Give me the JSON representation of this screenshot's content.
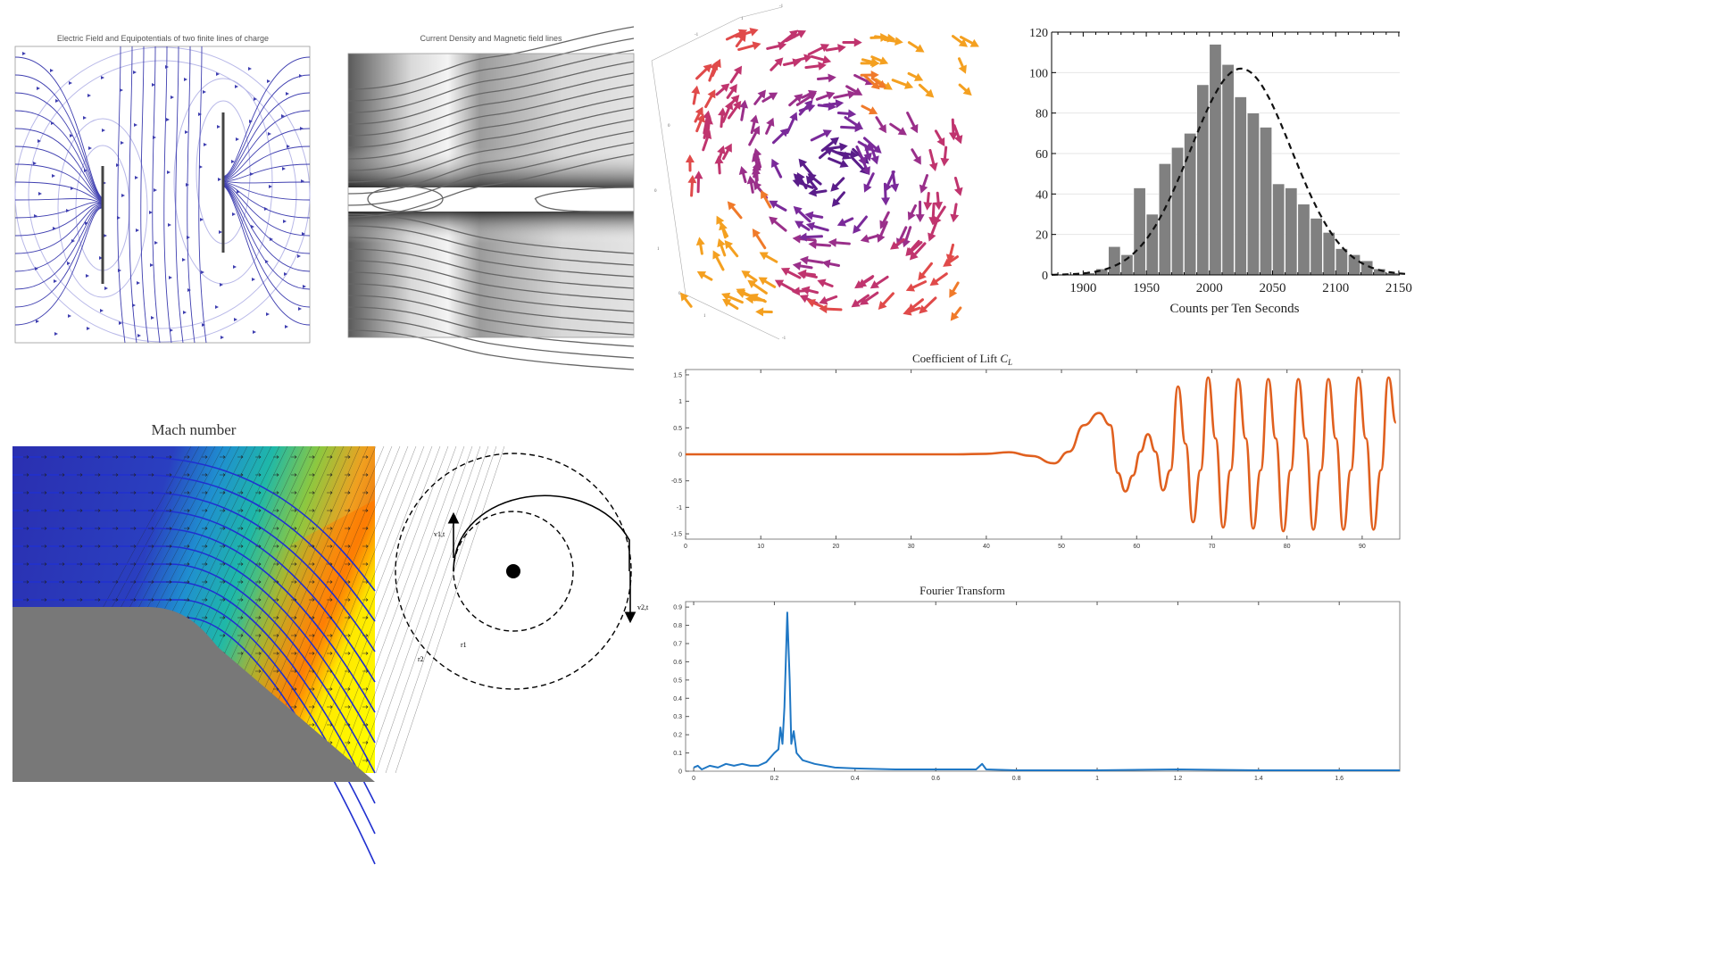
{
  "panels": {
    "efield": {
      "title": "Electric Field and Equipotentials of two finite lines of charge"
    },
    "current": {
      "title": "Current Density and Magnetic field lines"
    },
    "mach": {
      "title": "Mach number"
    },
    "orbit": {
      "labels": {
        "v1": "v1,t",
        "v2": "v2,t",
        "r1": "r1",
        "r2": "r2"
      }
    },
    "vector3d": {
      "axis_ticks": [
        "1",
        "-1",
        "0",
        "1",
        "0",
        "-1",
        "-1",
        "0",
        "1"
      ]
    }
  },
  "colors": {
    "field_line": "#3f3fb0",
    "equipotential": "#b8b8e8",
    "histogram_bar": "#808080",
    "lift_line": "#e0601f",
    "fourier_line": "#1f77c4"
  },
  "chart_data": [
    {
      "type": "bar",
      "title": "",
      "xlabel": "Counts per Ten Seconds",
      "ylabel": "",
      "xlim": [
        1875,
        2155
      ],
      "ylim": [
        0,
        120
      ],
      "xticks": [
        1900,
        1950,
        2000,
        2050,
        2100,
        2150
      ],
      "yticks": [
        0,
        20,
        40,
        60,
        80,
        100,
        120
      ],
      "bin_width": 10,
      "bin_starts": [
        1880,
        1890,
        1900,
        1910,
        1920,
        1930,
        1940,
        1950,
        1960,
        1970,
        1980,
        1990,
        2000,
        2010,
        2020,
        2030,
        2040,
        2050,
        2060,
        2070,
        2080,
        2090,
        2100,
        2110,
        2120,
        2130,
        2140,
        2150
      ],
      "values": [
        0,
        0,
        1,
        3,
        14,
        10,
        43,
        30,
        55,
        63,
        70,
        94,
        114,
        104,
        88,
        80,
        73,
        45,
        43,
        35,
        28,
        21,
        13,
        10,
        7,
        3,
        1,
        0
      ],
      "fit_curve": {
        "style": "dashed",
        "mean": 2025,
        "sd": 40,
        "peak": 102
      }
    },
    {
      "type": "line",
      "title": "Coefficient of Lift C_L",
      "xlim": [
        0,
        95
      ],
      "ylim": [
        -1.6,
        1.6
      ],
      "xticks": [
        0,
        10,
        20,
        30,
        40,
        50,
        60,
        70,
        80,
        90
      ],
      "yticks": [
        1.5,
        1,
        0.5,
        0,
        -0.5,
        -1,
        -1.5
      ],
      "series": [
        {
          "points": [
            [
              0,
              0
            ],
            [
              36,
              0
            ],
            [
              40,
              0.01
            ],
            [
              43,
              0.04
            ],
            [
              46,
              -0.03
            ],
            [
              49,
              -0.17
            ],
            [
              51,
              0.05
            ],
            [
              53,
              0.55
            ],
            [
              55,
              0.78
            ],
            [
              56.5,
              0.55
            ],
            [
              57.5,
              -0.35
            ],
            [
              58.5,
              -0.7
            ],
            [
              59.5,
              -0.4
            ],
            [
              60.5,
              0.05
            ],
            [
              61.5,
              0.38
            ],
            [
              62.5,
              0.05
            ],
            [
              63.5,
              -0.68
            ],
            [
              64.5,
              -0.3
            ],
            [
              65.5,
              1.28
            ],
            [
              66.5,
              0.2
            ],
            [
              67.5,
              -1.28
            ],
            [
              68.5,
              -0.3
            ],
            [
              69.5,
              1.45
            ],
            [
              70.5,
              0.3
            ],
            [
              71.5,
              -1.38
            ],
            [
              72.5,
              -0.3
            ],
            [
              73.5,
              1.42
            ],
            [
              74.5,
              0.3
            ],
            [
              75.5,
              -1.4
            ],
            [
              76.5,
              -0.3
            ],
            [
              77.5,
              1.42
            ],
            [
              78.5,
              0.3
            ],
            [
              79.5,
              -1.45
            ],
            [
              80.5,
              -0.3
            ],
            [
              81.5,
              1.42
            ],
            [
              82.5,
              0.3
            ],
            [
              83.5,
              -1.42
            ],
            [
              84.5,
              -0.3
            ],
            [
              85.5,
              1.42
            ],
            [
              86.5,
              0.3
            ],
            [
              87.5,
              -1.42
            ],
            [
              88.5,
              -0.3
            ],
            [
              89.5,
              1.45
            ],
            [
              90.5,
              0.3
            ],
            [
              91.5,
              -1.42
            ],
            [
              92.5,
              -0.3
            ],
            [
              93.5,
              1.45
            ],
            [
              94.5,
              0.6
            ]
          ]
        }
      ]
    },
    {
      "type": "line",
      "title": "Fourier Transform",
      "xlim": [
        -0.02,
        1.75
      ],
      "ylim": [
        0,
        0.93
      ],
      "xticks": [
        0,
        0.2,
        0.4,
        0.6,
        0.8,
        1,
        1.2,
        1.4,
        1.6
      ],
      "yticks": [
        0,
        0.1,
        0.2,
        0.3,
        0.4,
        0.5,
        0.6,
        0.7,
        0.8,
        0.9
      ],
      "series": [
        {
          "points": [
            [
              0,
              0.02
            ],
            [
              0.01,
              0.03
            ],
            [
              0.02,
              0.01
            ],
            [
              0.04,
              0.03
            ],
            [
              0.06,
              0.02
            ],
            [
              0.08,
              0.04
            ],
            [
              0.1,
              0.03
            ],
            [
              0.12,
              0.04
            ],
            [
              0.14,
              0.03
            ],
            [
              0.16,
              0.03
            ],
            [
              0.18,
              0.05
            ],
            [
              0.2,
              0.1
            ],
            [
              0.21,
              0.12
            ],
            [
              0.215,
              0.24
            ],
            [
              0.22,
              0.15
            ],
            [
              0.225,
              0.35
            ],
            [
              0.232,
              0.87
            ],
            [
              0.238,
              0.5
            ],
            [
              0.242,
              0.15
            ],
            [
              0.248,
              0.22
            ],
            [
              0.255,
              0.1
            ],
            [
              0.27,
              0.06
            ],
            [
              0.3,
              0.04
            ],
            [
              0.35,
              0.02
            ],
            [
              0.4,
              0.015
            ],
            [
              0.5,
              0.01
            ],
            [
              0.6,
              0.01
            ],
            [
              0.7,
              0.01
            ],
            [
              0.715,
              0.04
            ],
            [
              0.725,
              0.01
            ],
            [
              0.8,
              0.005
            ],
            [
              1.0,
              0.005
            ],
            [
              1.2,
              0.01
            ],
            [
              1.4,
              0.005
            ],
            [
              1.6,
              0.005
            ],
            [
              1.75,
              0.005
            ]
          ]
        }
      ]
    }
  ]
}
